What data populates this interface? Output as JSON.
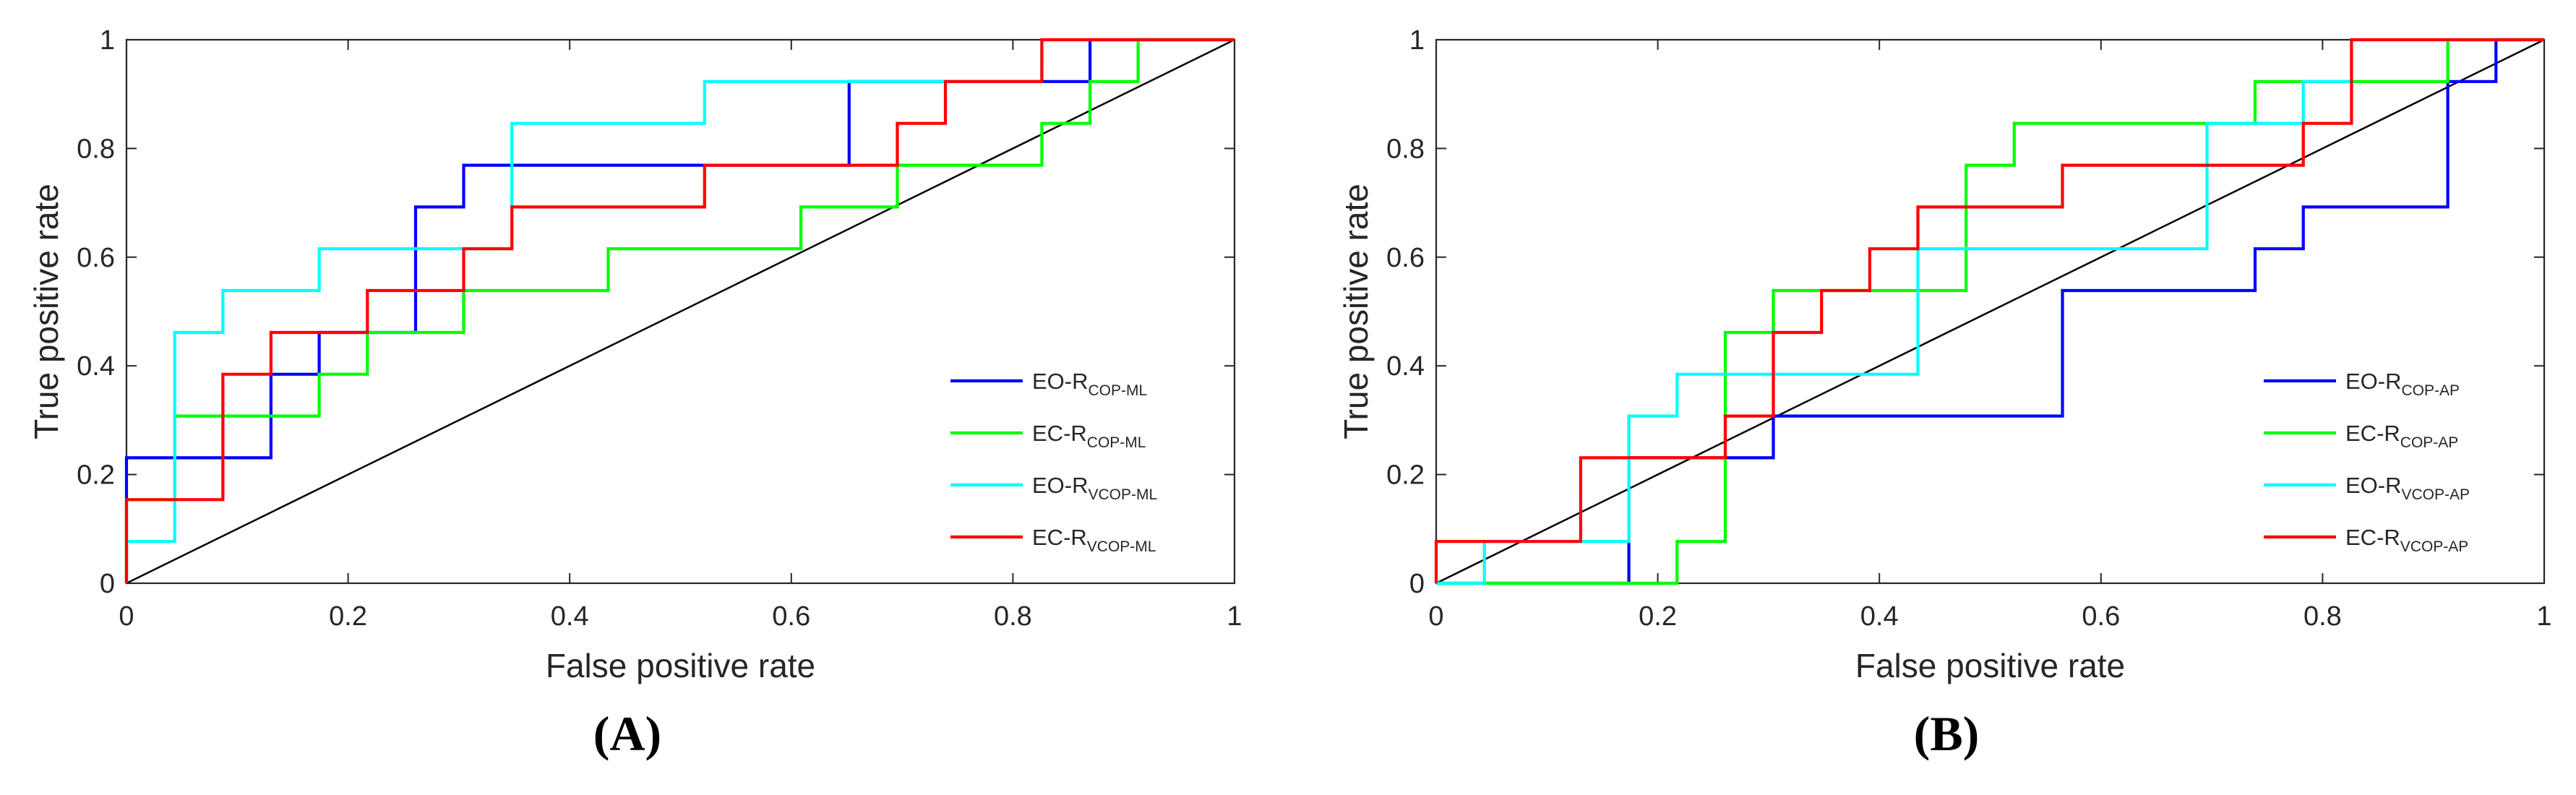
{
  "chart_data": [
    {
      "type": "line",
      "title": "",
      "panel_label": "(A)",
      "xlabel": "False positive rate",
      "ylabel": "True positive rate",
      "xlim": [
        0,
        1
      ],
      "ylim": [
        0,
        1
      ],
      "xticks": [
        "0",
        "0.2",
        "0.4",
        "0.6",
        "0.8",
        "1"
      ],
      "yticks": [
        "0",
        "0.2",
        "0.4",
        "0.6",
        "0.8",
        "1"
      ],
      "grid": false,
      "legend_position": "bottom-right",
      "reference_line": {
        "name": "chance",
        "color": "#000000",
        "x": [
          0,
          1
        ],
        "y": [
          0,
          1
        ]
      },
      "series": [
        {
          "name": "EO-R",
          "subscript": "COP-ML",
          "color": "#0000ff",
          "x": [
            0,
            0,
            0.0435,
            0.0435,
            0.1304,
            0.1304,
            0.1739,
            0.1739,
            0.2609,
            0.2609,
            0.3043,
            0.3043,
            0.6522,
            0.6522,
            0.8696,
            0.8696,
            1
          ],
          "y": [
            0,
            0.2308,
            0.2308,
            0.2308,
            0.2308,
            0.3846,
            0.3846,
            0.4615,
            0.4615,
            0.6923,
            0.6923,
            0.7692,
            0.7692,
            0.9231,
            0.9231,
            1,
            1
          ]
        },
        {
          "name": "EC-R",
          "subscript": "COP-ML",
          "color": "#00ff00",
          "x": [
            0,
            0,
            0.0435,
            0.0435,
            0.1739,
            0.1739,
            0.2174,
            0.2174,
            0.3043,
            0.3043,
            0.4348,
            0.4348,
            0.6087,
            0.6087,
            0.6957,
            0.6957,
            0.8261,
            0.8261,
            0.8696,
            0.8696,
            0.913,
            0.913,
            1
          ],
          "y": [
            0,
            0.1538,
            0.1538,
            0.3077,
            0.3077,
            0.3846,
            0.3846,
            0.4615,
            0.4615,
            0.5385,
            0.5385,
            0.6154,
            0.6154,
            0.6923,
            0.6923,
            0.7692,
            0.7692,
            0.8462,
            0.8462,
            0.9231,
            0.9231,
            1,
            1
          ]
        },
        {
          "name": "EO-R",
          "subscript": "VCOP-ML",
          "color": "#00ffff",
          "x": [
            0,
            0,
            0.0435,
            0.0435,
            0.087,
            0.087,
            0.1739,
            0.1739,
            0.3478,
            0.3478,
            0.5217,
            0.5217,
            0.7391,
            0.7391,
            0.8261,
            0.8261,
            1
          ],
          "y": [
            0,
            0.0769,
            0.0769,
            0.4615,
            0.4615,
            0.5385,
            0.5385,
            0.6154,
            0.6154,
            0.8462,
            0.8462,
            0.9231,
            0.9231,
            0.9231,
            0.9231,
            1,
            1
          ]
        },
        {
          "name": "EC-R",
          "subscript": "VCOP-ML",
          "color": "#ff0000",
          "x": [
            0,
            0,
            0.087,
            0.087,
            0.1304,
            0.1304,
            0.2174,
            0.2174,
            0.3043,
            0.3043,
            0.3478,
            0.3478,
            0.5217,
            0.5217,
            0.6957,
            0.6957,
            0.7391,
            0.7391,
            0.8261,
            0.8261,
            1
          ],
          "y": [
            0,
            0.1538,
            0.1538,
            0.3846,
            0.3846,
            0.4615,
            0.4615,
            0.5385,
            0.5385,
            0.6154,
            0.6154,
            0.6923,
            0.6923,
            0.7692,
            0.7692,
            0.8462,
            0.8462,
            0.9231,
            0.9231,
            1,
            1
          ]
        }
      ]
    },
    {
      "type": "line",
      "title": "",
      "panel_label": "(B)",
      "xlabel": "False positive rate",
      "ylabel": "True positive rate",
      "xlim": [
        0,
        1
      ],
      "ylim": [
        0,
        1
      ],
      "xticks": [
        "0",
        "0.2",
        "0.4",
        "0.6",
        "0.8",
        "1"
      ],
      "yticks": [
        "0",
        "0.2",
        "0.4",
        "0.6",
        "0.8",
        "1"
      ],
      "grid": false,
      "legend_position": "bottom-right",
      "reference_line": {
        "name": "chance",
        "color": "#000000",
        "x": [
          0,
          1
        ],
        "y": [
          0,
          1
        ]
      },
      "series": [
        {
          "name": "EO-R",
          "subscript": "COP-AP",
          "color": "#0000ff",
          "x": [
            0,
            0,
            0.1739,
            0.1739,
            0.3043,
            0.3043,
            0.5652,
            0.5652,
            0.7391,
            0.7391,
            0.7826,
            0.7826,
            0.913,
            0.913,
            0.9565,
            0.9565,
            1
          ],
          "y": [
            0,
            0,
            0,
            0.2308,
            0.2308,
            0.3077,
            0.3077,
            0.5385,
            0.5385,
            0.6154,
            0.6154,
            0.6923,
            0.6923,
            0.9231,
            0.9231,
            1,
            1
          ]
        },
        {
          "name": "EC-R",
          "subscript": "COP-AP",
          "color": "#00ff00",
          "x": [
            0,
            0,
            0.2174,
            0.2174,
            0.2609,
            0.2609,
            0.3043,
            0.3043,
            0.4348,
            0.4348,
            0.4783,
            0.4783,
            0.5217,
            0.5217,
            0.6522,
            0.6522,
            0.7391,
            0.7391,
            0.8261,
            0.8261,
            0.913,
            0.913,
            1
          ],
          "y": [
            0,
            0,
            0,
            0.0769,
            0.0769,
            0.4615,
            0.4615,
            0.5385,
            0.5385,
            0.5385,
            0.5385,
            0.7692,
            0.7692,
            0.8462,
            0.8462,
            0.8462,
            0.8462,
            0.9231,
            0.9231,
            0.9231,
            0.9231,
            1,
            1
          ]
        },
        {
          "name": "EO-R",
          "subscript": "VCOP-AP",
          "color": "#00ffff",
          "x": [
            0,
            0,
            0.0435,
            0.0435,
            0.1739,
            0.1739,
            0.2174,
            0.2174,
            0.3043,
            0.3043,
            0.4348,
            0.4348,
            0.6957,
            0.6957,
            0.7826,
            0.7826,
            0.8261,
            0.8261,
            1
          ],
          "y": [
            0,
            0,
            0,
            0.0769,
            0.0769,
            0.3077,
            0.3077,
            0.3846,
            0.3846,
            0.3846,
            0.3846,
            0.6154,
            0.6154,
            0.8462,
            0.8462,
            0.9231,
            0.9231,
            1,
            1
          ]
        },
        {
          "name": "EC-R",
          "subscript": "VCOP-AP",
          "color": "#ff0000",
          "x": [
            0,
            0,
            0.1304,
            0.1304,
            0.2609,
            0.2609,
            0.3043,
            0.3043,
            0.3478,
            0.3478,
            0.3913,
            0.3913,
            0.4348,
            0.4348,
            0.5652,
            0.5652,
            0.7826,
            0.7826,
            0.8261,
            0.8261,
            1
          ],
          "y": [
            0,
            0.0769,
            0.0769,
            0.2308,
            0.2308,
            0.3077,
            0.3077,
            0.4615,
            0.4615,
            0.5385,
            0.5385,
            0.6154,
            0.6154,
            0.6923,
            0.6923,
            0.7692,
            0.7692,
            0.8462,
            0.8462,
            1,
            1
          ]
        }
      ]
    }
  ]
}
